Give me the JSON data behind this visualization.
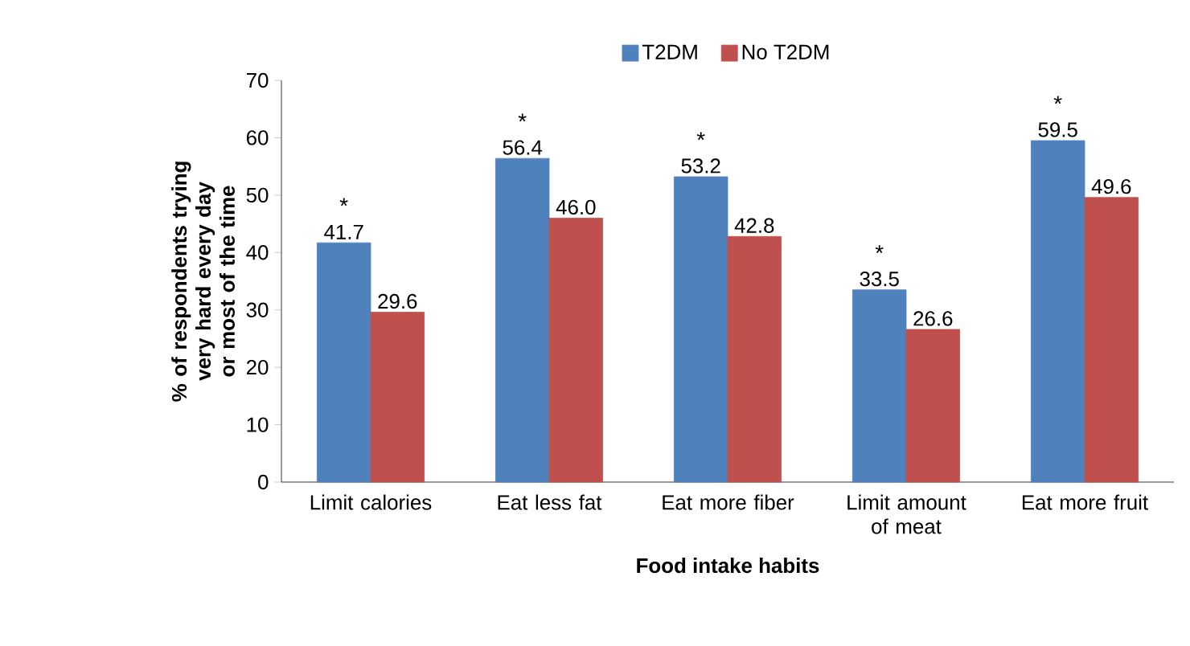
{
  "chart_data": {
    "type": "bar",
    "xlabel": "Food intake habits",
    "ylabel": "% of respondents trying very hard every day or most of the time",
    "categories": [
      "Limit calories",
      "Eat less fat",
      "Eat more fiber",
      "Limit amount of meat",
      "Eat more fruit"
    ],
    "series": [
      {
        "name": "T2DM",
        "color": "#4f81bd",
        "values": [
          41.7,
          56.4,
          53.2,
          33.5,
          59.5
        ],
        "value_labels": [
          "41.7",
          "56.4",
          "53.2",
          "33.5",
          "59.5"
        ]
      },
      {
        "name": "No T2DM",
        "color": "#c0504d",
        "values": [
          29.6,
          46.0,
          42.8,
          26.6,
          49.6
        ],
        "value_labels": [
          "29.6",
          "46.0",
          "42.8",
          "26.6",
          "49.6"
        ]
      }
    ],
    "ylim": [
      0,
      70
    ],
    "yticks": [
      0,
      10,
      20,
      30,
      40,
      50,
      60,
      70
    ],
    "grid": false,
    "legend": "top",
    "annotations": [
      {
        "text": "*",
        "x": "Limit calories",
        "y": 41.7
      },
      {
        "text": "*",
        "x": "Eat less fat",
        "y": 56.4
      },
      {
        "text": "*",
        "x": "Eat more fiber",
        "y": 53.2
      },
      {
        "text": "*",
        "x": "Limit amount of meat",
        "y": 33.5
      },
      {
        "text": "*",
        "x": "Eat more fruit",
        "y": 59.5
      }
    ]
  }
}
